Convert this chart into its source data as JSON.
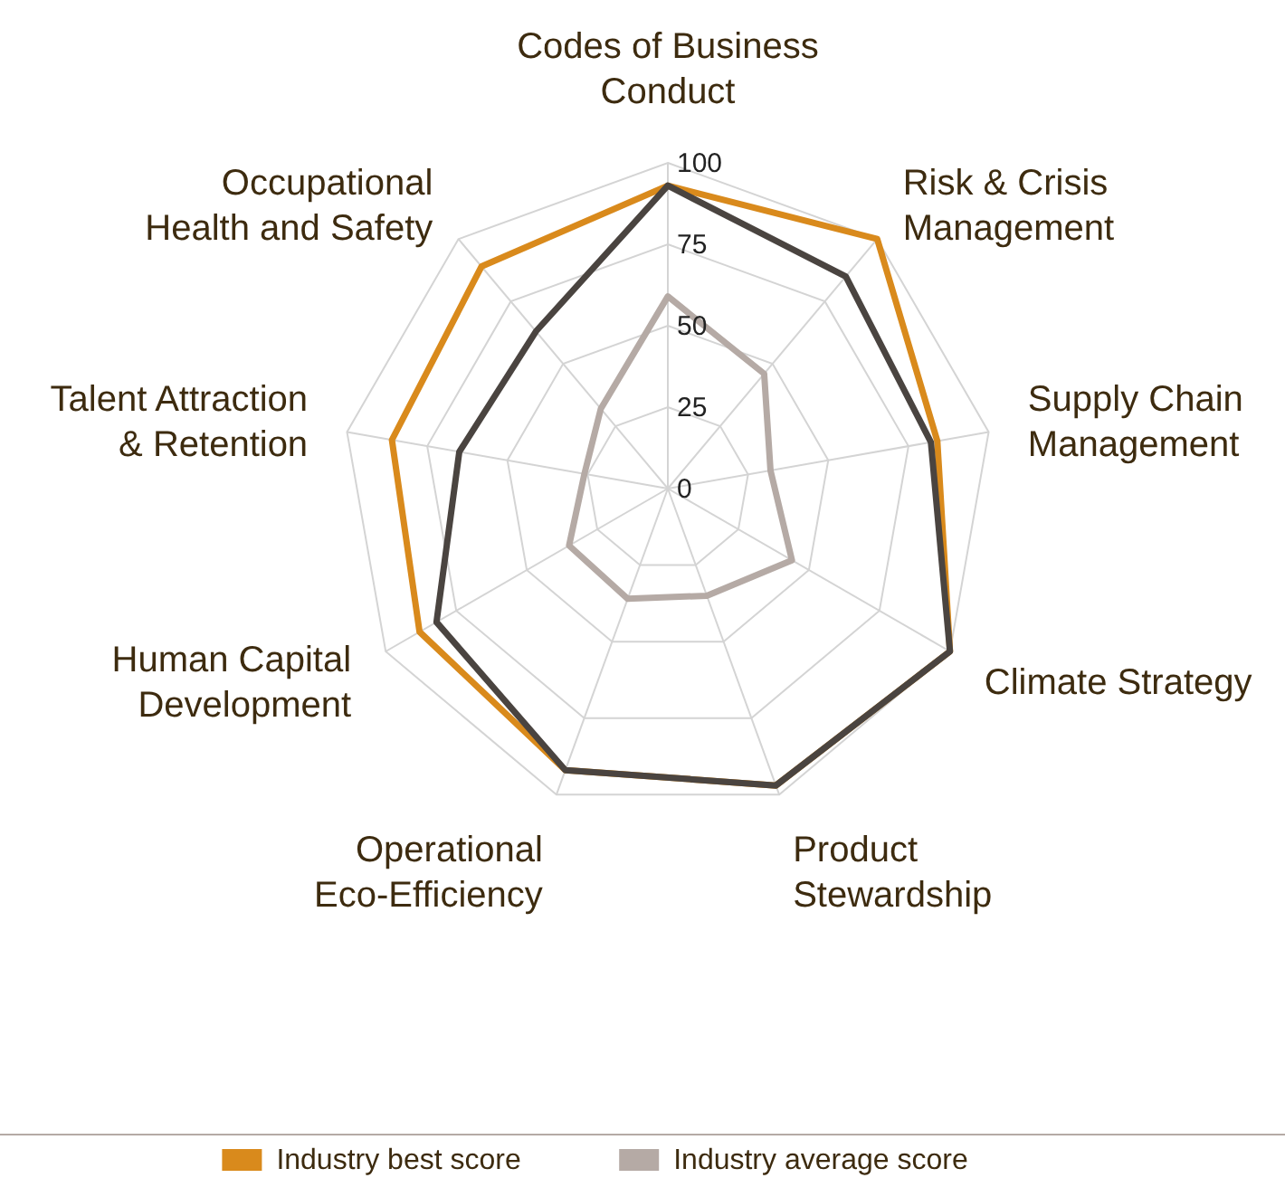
{
  "chart_data": {
    "type": "radar",
    "categories": [
      "Codes of Business Conduct",
      "Risk & Crisis Management",
      "Supply Chain Management",
      "Climate Strategy",
      "Product Stewardship",
      "Operational Eco-Efficiency",
      "Human Capital Development",
      "Talent Attraction & Retention",
      "Occupational Health and Safety"
    ],
    "series": [
      {
        "name": "Industry best score",
        "color": "#d98a1c",
        "values": [
          93,
          100,
          84,
          100,
          97,
          92,
          88,
          86,
          89
        ]
      },
      {
        "name": "Industry average score",
        "color": "#b5aaa5",
        "values": [
          59,
          46,
          32,
          44,
          35,
          36,
          35,
          26,
          32
        ]
      },
      {
        "color": "#4a4440",
        "values": [
          93,
          85,
          82,
          100,
          97,
          92,
          82,
          65,
          63
        ]
      }
    ],
    "ylim": [
      0,
      100
    ],
    "yticks": [
      0,
      25,
      50,
      75,
      100
    ],
    "grid": true,
    "legend": "bottom"
  }
}
